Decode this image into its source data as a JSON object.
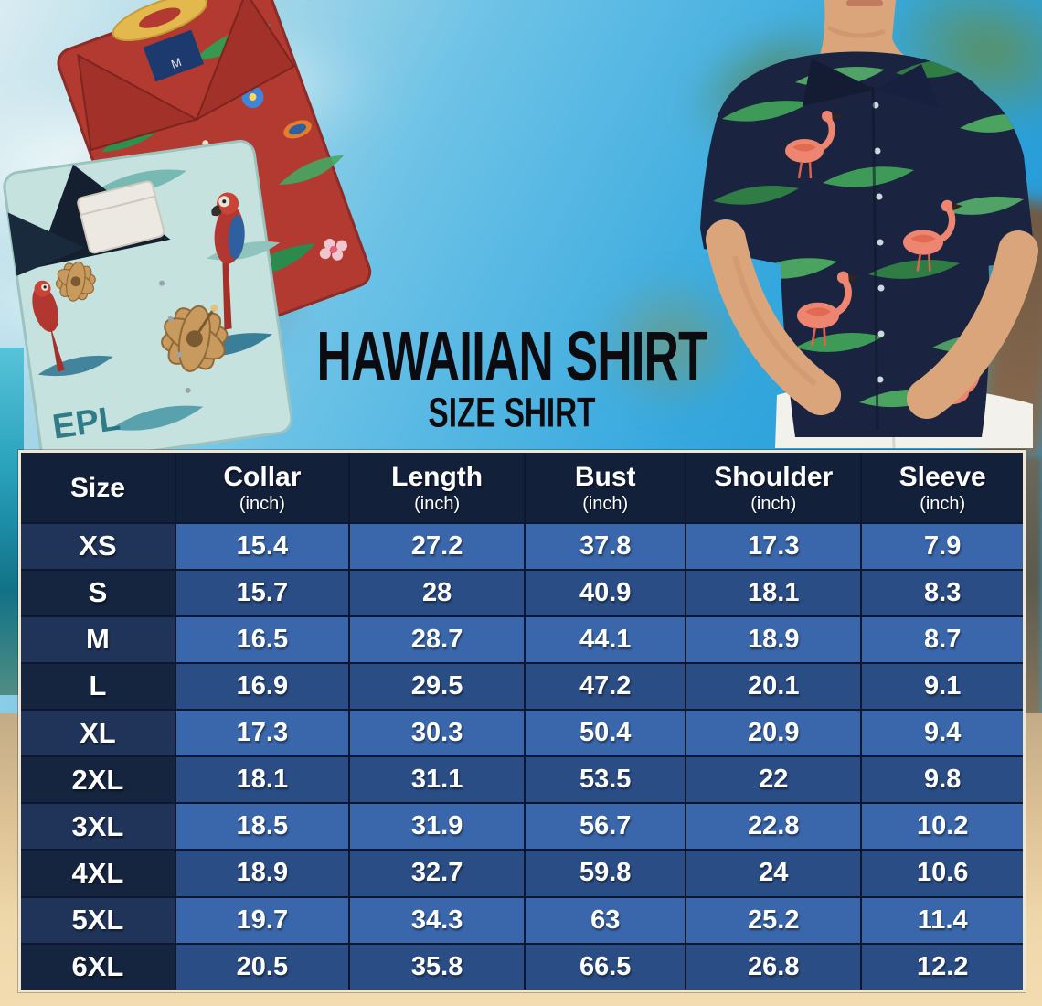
{
  "title": {
    "main": "HAWAIIAN SHIRT",
    "sub": "SIZE SHIRT"
  },
  "table": {
    "columns": [
      {
        "label": "Size",
        "unit": ""
      },
      {
        "label": "Collar",
        "unit": "(inch)"
      },
      {
        "label": "Length",
        "unit": "(inch)"
      },
      {
        "label": "Bust",
        "unit": "(inch)"
      },
      {
        "label": "Shoulder",
        "unit": "(inch)"
      },
      {
        "label": "Sleeve",
        "unit": "(inch)"
      }
    ],
    "rows": [
      {
        "size": "XS",
        "values": [
          "15.4",
          "27.2",
          "37.8",
          "17.3",
          "7.9"
        ]
      },
      {
        "size": "S",
        "values": [
          "15.7",
          "28",
          "40.9",
          "18.1",
          "8.3"
        ]
      },
      {
        "size": "M",
        "values": [
          "16.5",
          "28.7",
          "44.1",
          "18.9",
          "8.7"
        ]
      },
      {
        "size": "L",
        "values": [
          "16.9",
          "29.5",
          "47.2",
          "20.1",
          "9.1"
        ]
      },
      {
        "size": "XL",
        "values": [
          "17.3",
          "30.3",
          "50.4",
          "20.9",
          "9.4"
        ]
      },
      {
        "size": "2XL",
        "values": [
          "18.1",
          "31.1",
          "53.5",
          "22",
          "9.8"
        ]
      },
      {
        "size": "3XL",
        "values": [
          "18.5",
          "31.9",
          "56.7",
          "22.8",
          "10.2"
        ]
      },
      {
        "size": "4XL",
        "values": [
          "18.9",
          "32.7",
          "59.8",
          "24",
          "10.6"
        ]
      },
      {
        "size": "5XL",
        "values": [
          "19.7",
          "34.3",
          "63",
          "25.2",
          "11.4"
        ]
      },
      {
        "size": "6XL",
        "values": [
          "20.5",
          "35.8",
          "66.5",
          "26.8",
          "12.2"
        ]
      }
    ]
  },
  "chart_data": {
    "type": "table",
    "title": "HAWAIIAN SHIRT — SIZE SHIRT",
    "columns": [
      "Size",
      "Collar (inch)",
      "Length (inch)",
      "Bust (inch)",
      "Shoulder (inch)",
      "Sleeve (inch)"
    ],
    "rows": [
      [
        "XS",
        15.4,
        27.2,
        37.8,
        17.3,
        7.9
      ],
      [
        "S",
        15.7,
        28,
        40.9,
        18.1,
        8.3
      ],
      [
        "M",
        16.5,
        28.7,
        44.1,
        18.9,
        8.7
      ],
      [
        "L",
        16.9,
        29.5,
        47.2,
        20.1,
        9.1
      ],
      [
        "XL",
        17.3,
        30.3,
        50.4,
        20.9,
        9.4
      ],
      [
        "2XL",
        18.1,
        31.1,
        53.5,
        22,
        9.8
      ],
      [
        "3XL",
        18.5,
        31.9,
        56.7,
        22.8,
        10.2
      ],
      [
        "4XL",
        18.9,
        32.7,
        59.8,
        24,
        10.6
      ],
      [
        "5XL",
        19.7,
        34.3,
        63,
        25.2,
        11.4
      ],
      [
        "6XL",
        20.5,
        35.8,
        66.5,
        26.8,
        12.2
      ]
    ]
  },
  "photo": {
    "red_shirt_tag": "M",
    "teal_shirt_text": "EPL"
  },
  "colors": {
    "header_bg": "#13203a",
    "row_light": "#3a67ab",
    "row_dark": "#2b4d85",
    "size_light": "#20345a",
    "size_dark": "#15253f",
    "grid_line": "#0d1830",
    "table_border": "#efe7d2",
    "title_text": "#0b0b10",
    "cell_text": "#ffffff"
  }
}
